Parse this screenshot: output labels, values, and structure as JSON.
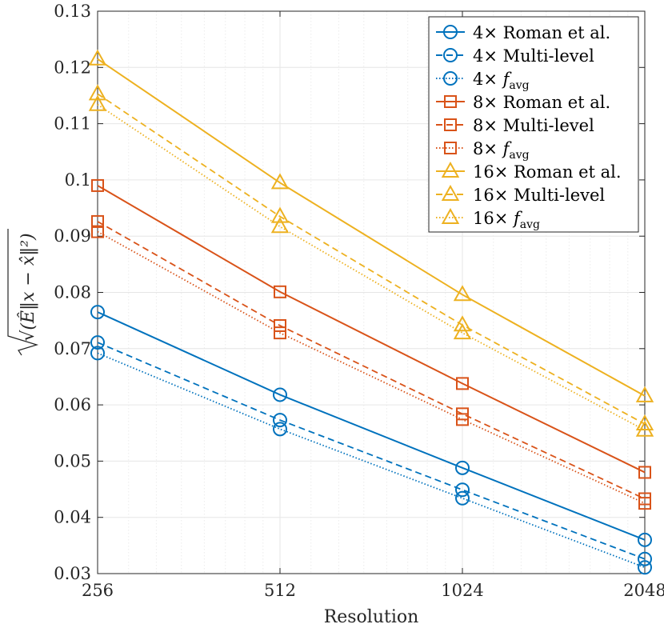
{
  "chart_data": {
    "type": "line",
    "title": "",
    "xlabel": "Resolution",
    "ylabel": "√(Ê‖x − x̂‖²)",
    "x_scale": "log2",
    "x": [
      256,
      512,
      1024,
      2048
    ],
    "xticks": [
      "256",
      "512",
      "1024",
      "2048"
    ],
    "xlim": [
      256,
      2048
    ],
    "ylim": [
      0.03,
      0.13
    ],
    "yticks": [
      "0.03",
      "0.04",
      "0.05",
      "0.06",
      "0.07",
      "0.08",
      "0.09",
      "0.1",
      "0.11",
      "0.12",
      "0.13"
    ],
    "grid": true,
    "legend_position": "top-right",
    "series": [
      {
        "name": "4× Roman et al.",
        "color": "#0072BD",
        "linestyle": "solid",
        "marker": "circle",
        "values": [
          0.0765,
          0.0618,
          0.0488,
          0.036
        ]
      },
      {
        "name": "4× Multi-level",
        "color": "#0072BD",
        "linestyle": "dashed",
        "marker": "circle",
        "values": [
          0.0711,
          0.0573,
          0.0449,
          0.0326
        ]
      },
      {
        "name": "4× f_avg",
        "color": "#0072BD",
        "linestyle": "dotted",
        "marker": "circle",
        "values": [
          0.0692,
          0.0557,
          0.0434,
          0.0311
        ]
      },
      {
        "name": "8× Roman et al.",
        "color": "#D95319",
        "linestyle": "solid",
        "marker": "square",
        "values": [
          0.099,
          0.0801,
          0.0638,
          0.048
        ]
      },
      {
        "name": "8× Multi-level",
        "color": "#D95319",
        "linestyle": "dashed",
        "marker": "square",
        "values": [
          0.0926,
          0.0741,
          0.0584,
          0.0433
        ]
      },
      {
        "name": "8× f_avg",
        "color": "#D95319",
        "linestyle": "dotted",
        "marker": "square",
        "values": [
          0.0908,
          0.0728,
          0.0574,
          0.0425
        ]
      },
      {
        "name": "16× Roman et al.",
        "color": "#EDB120",
        "linestyle": "solid",
        "marker": "triangle",
        "values": [
          0.1215,
          0.0995,
          0.0796,
          0.0616
        ]
      },
      {
        "name": "16× Multi-level",
        "color": "#EDB120",
        "linestyle": "dashed",
        "marker": "triangle",
        "values": [
          0.1153,
          0.0935,
          0.0742,
          0.0566
        ]
      },
      {
        "name": "16× f_avg",
        "color": "#EDB120",
        "linestyle": "dotted",
        "marker": "triangle",
        "values": [
          0.1134,
          0.0917,
          0.0728,
          0.0555
        ]
      }
    ],
    "legend_labels": [
      {
        "prefix": "4×",
        "rest": "Roman et al.",
        "math": false
      },
      {
        "prefix": "4×",
        "rest": "Multi-level",
        "math": false
      },
      {
        "prefix": "4×",
        "rest": "f",
        "sub": "avg",
        "math": true
      },
      {
        "prefix": "8×",
        "rest": "Roman et al.",
        "math": false
      },
      {
        "prefix": "8×",
        "rest": "Multi-level",
        "math": false
      },
      {
        "prefix": "8×",
        "rest": "f",
        "sub": "avg",
        "math": true
      },
      {
        "prefix": "16×",
        "rest": "Roman et al.",
        "math": false
      },
      {
        "prefix": "16×",
        "rest": "Multi-level",
        "math": false
      },
      {
        "prefix": "16×",
        "rest": "f",
        "sub": "avg",
        "math": true
      }
    ]
  }
}
